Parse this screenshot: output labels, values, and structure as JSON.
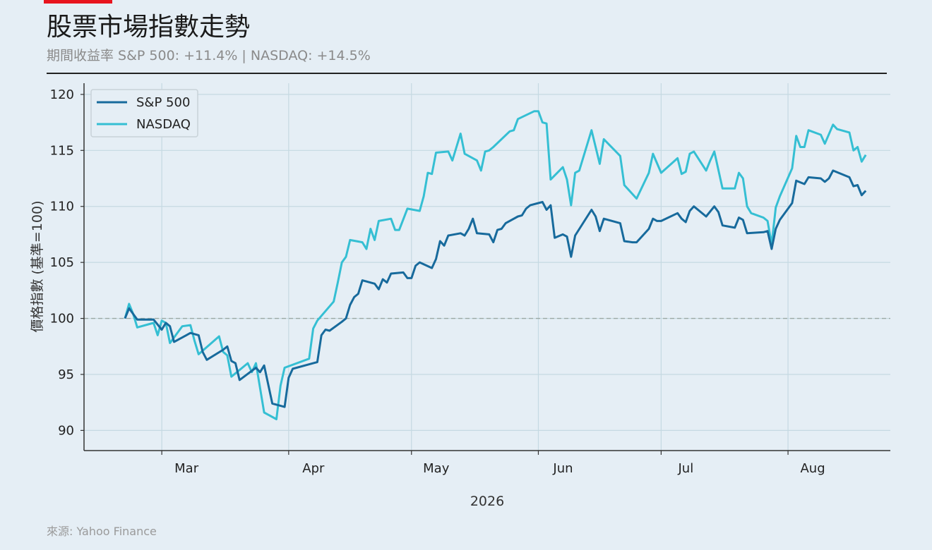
{
  "header": {
    "title": "股票市場指數走勢",
    "subtitle": "期間收益率 S&P 500: +11.4% | NASDAQ: +14.5%"
  },
  "footer": {
    "source": "來源: Yahoo Finance"
  },
  "colors": {
    "sp500": "#176a9c",
    "nasdaq": "#35bfd3",
    "accent": "#e8141e",
    "baseline": "#9aa8a4"
  },
  "chart_data": {
    "type": "line",
    "title": "",
    "xlabel": "2026",
    "ylabel": "價格指數 (基準=100)",
    "ylim": [
      88.2,
      121
    ],
    "yticks": [
      90,
      95,
      100,
      105,
      110,
      115,
      120
    ],
    "xlim": [
      "2026-02-10",
      "2026-08-26"
    ],
    "xticks": [
      {
        "date": "2026-03-01",
        "label": "Mar"
      },
      {
        "date": "2026-04-01",
        "label": "Apr"
      },
      {
        "date": "2026-05-01",
        "label": "May"
      },
      {
        "date": "2026-06-01",
        "label": "Jun"
      },
      {
        "date": "2026-07-01",
        "label": "Jul"
      },
      {
        "date": "2026-08-01",
        "label": "Aug"
      }
    ],
    "baseline": 100,
    "grid": true,
    "legend": "top-left",
    "series": [
      {
        "name": "S&P 500",
        "points": [
          [
            "2026-02-20",
            100.0
          ],
          [
            "2026-02-21",
            100.9
          ],
          [
            "2026-02-23",
            99.9
          ],
          [
            "2026-02-26",
            99.9
          ],
          [
            "2026-02-27",
            99.9
          ],
          [
            "2026-03-01",
            99.0
          ],
          [
            "2026-03-02",
            99.6
          ],
          [
            "2026-03-03",
            99.3
          ],
          [
            "2026-03-04",
            97.9
          ],
          [
            "2026-03-07",
            98.5
          ],
          [
            "2026-03-08",
            98.7
          ],
          [
            "2026-03-10",
            98.5
          ],
          [
            "2026-03-11",
            97.0
          ],
          [
            "2026-03-12",
            96.3
          ],
          [
            "2026-03-16",
            97.2
          ],
          [
            "2026-03-17",
            97.5
          ],
          [
            "2026-03-18",
            96.2
          ],
          [
            "2026-03-19",
            96.0
          ],
          [
            "2026-03-20",
            94.5
          ],
          [
            "2026-03-24",
            95.6
          ],
          [
            "2026-03-25",
            95.2
          ],
          [
            "2026-03-26",
            95.8
          ],
          [
            "2026-03-28",
            92.4
          ],
          [
            "2026-03-31",
            92.1
          ],
          [
            "2026-04-01",
            94.7
          ],
          [
            "2026-04-02",
            95.5
          ],
          [
            "2026-04-07",
            96.0
          ],
          [
            "2026-04-08",
            96.1
          ],
          [
            "2026-04-09",
            98.5
          ],
          [
            "2026-04-10",
            99.0
          ],
          [
            "2026-04-11",
            98.9
          ],
          [
            "2026-04-14",
            99.7
          ],
          [
            "2026-04-15",
            100.0
          ],
          [
            "2026-04-16",
            101.2
          ],
          [
            "2026-04-17",
            101.9
          ],
          [
            "2026-04-18",
            102.2
          ],
          [
            "2026-04-19",
            103.4
          ],
          [
            "2026-04-22",
            103.1
          ],
          [
            "2026-04-23",
            102.6
          ],
          [
            "2026-04-24",
            103.5
          ],
          [
            "2026-04-25",
            103.2
          ],
          [
            "2026-04-26",
            104.0
          ],
          [
            "2026-04-29",
            104.1
          ],
          [
            "2026-04-30",
            103.6
          ],
          [
            "2026-05-01",
            103.6
          ],
          [
            "2026-05-02",
            104.7
          ],
          [
            "2026-05-03",
            105.0
          ],
          [
            "2026-05-06",
            104.5
          ],
          [
            "2026-05-07",
            105.3
          ],
          [
            "2026-05-08",
            106.9
          ],
          [
            "2026-05-09",
            106.5
          ],
          [
            "2026-05-10",
            107.4
          ],
          [
            "2026-05-13",
            107.6
          ],
          [
            "2026-05-14",
            107.4
          ],
          [
            "2026-05-15",
            108.0
          ],
          [
            "2026-05-16",
            108.9
          ],
          [
            "2026-05-17",
            107.6
          ],
          [
            "2026-05-20",
            107.5
          ],
          [
            "2026-05-21",
            106.8
          ],
          [
            "2026-05-22",
            107.9
          ],
          [
            "2026-05-23",
            108.0
          ],
          [
            "2026-05-24",
            108.5
          ],
          [
            "2026-05-27",
            109.1
          ],
          [
            "2026-05-28",
            109.2
          ],
          [
            "2026-05-29",
            109.8
          ],
          [
            "2026-05-30",
            110.1
          ],
          [
            "2026-06-01",
            110.3
          ],
          [
            "2026-06-02",
            110.4
          ],
          [
            "2026-06-03",
            109.7
          ],
          [
            "2026-06-04",
            110.1
          ],
          [
            "2026-06-05",
            107.2
          ],
          [
            "2026-06-07",
            107.5
          ],
          [
            "2026-06-08",
            107.3
          ],
          [
            "2026-06-09",
            105.5
          ],
          [
            "2026-06-10",
            107.4
          ],
          [
            "2026-06-14",
            109.7
          ],
          [
            "2026-06-15",
            109.1
          ],
          [
            "2026-06-16",
            107.8
          ],
          [
            "2026-06-17",
            108.9
          ],
          [
            "2026-06-21",
            108.5
          ],
          [
            "2026-06-22",
            106.9
          ],
          [
            "2026-06-24",
            106.8
          ],
          [
            "2026-06-25",
            106.8
          ],
          [
            "2026-06-28",
            108.0
          ],
          [
            "2026-06-29",
            108.9
          ],
          [
            "2026-06-30",
            108.7
          ],
          [
            "2026-07-01",
            108.7
          ],
          [
            "2026-07-05",
            109.4
          ],
          [
            "2026-07-06",
            108.9
          ],
          [
            "2026-07-07",
            108.6
          ],
          [
            "2026-07-08",
            109.6
          ],
          [
            "2026-07-09",
            110.0
          ],
          [
            "2026-07-12",
            109.1
          ],
          [
            "2026-07-14",
            110.0
          ],
          [
            "2026-07-15",
            109.5
          ],
          [
            "2026-07-16",
            108.3
          ],
          [
            "2026-07-19",
            108.1
          ],
          [
            "2026-07-20",
            109.0
          ],
          [
            "2026-07-21",
            108.8
          ],
          [
            "2026-07-22",
            107.6
          ],
          [
            "2026-07-26",
            107.7
          ],
          [
            "2026-07-27",
            107.8
          ],
          [
            "2026-07-28",
            106.2
          ],
          [
            "2026-07-29",
            108.0
          ],
          [
            "2026-07-30",
            108.8
          ],
          [
            "2026-08-02",
            110.3
          ],
          [
            "2026-08-03",
            112.3
          ],
          [
            "2026-08-05",
            112.0
          ],
          [
            "2026-08-06",
            112.6
          ],
          [
            "2026-08-09",
            112.5
          ],
          [
            "2026-08-10",
            112.2
          ],
          [
            "2026-08-11",
            112.5
          ],
          [
            "2026-08-12",
            113.2
          ],
          [
            "2026-08-16",
            112.6
          ],
          [
            "2026-08-17",
            111.8
          ],
          [
            "2026-08-18",
            111.9
          ],
          [
            "2026-08-19",
            111.0
          ],
          [
            "2026-08-20",
            111.4
          ]
        ]
      },
      {
        "name": "NASDAQ",
        "points": [
          [
            "2026-02-20",
            100.0
          ],
          [
            "2026-02-21",
            101.3
          ],
          [
            "2026-02-22",
            100.4
          ],
          [
            "2026-02-23",
            99.2
          ],
          [
            "2026-02-26",
            99.5
          ],
          [
            "2026-02-27",
            99.6
          ],
          [
            "2026-02-28",
            98.5
          ],
          [
            "2026-03-01",
            99.8
          ],
          [
            "2026-03-02",
            99.6
          ],
          [
            "2026-03-03",
            97.8
          ],
          [
            "2026-03-06",
            99.3
          ],
          [
            "2026-03-08",
            99.4
          ],
          [
            "2026-03-09",
            98.0
          ],
          [
            "2026-03-10",
            96.8
          ],
          [
            "2026-03-15",
            98.4
          ],
          [
            "2026-03-16",
            97.0
          ],
          [
            "2026-03-17",
            96.7
          ],
          [
            "2026-03-18",
            94.8
          ],
          [
            "2026-03-22",
            96.0
          ],
          [
            "2026-03-23",
            95.2
          ],
          [
            "2026-03-24",
            96.0
          ],
          [
            "2026-03-26",
            91.6
          ],
          [
            "2026-03-29",
            91.0
          ],
          [
            "2026-03-30",
            94.0
          ],
          [
            "2026-03-31",
            95.6
          ],
          [
            "2026-04-06",
            96.4
          ],
          [
            "2026-04-07",
            99.1
          ],
          [
            "2026-04-08",
            99.8
          ],
          [
            "2026-04-12",
            101.5
          ],
          [
            "2026-04-13",
            103.2
          ],
          [
            "2026-04-14",
            105.0
          ],
          [
            "2026-04-15",
            105.5
          ],
          [
            "2026-04-16",
            107.0
          ],
          [
            "2026-04-19",
            106.8
          ],
          [
            "2026-04-20",
            106.2
          ],
          [
            "2026-04-21",
            108.0
          ],
          [
            "2026-04-22",
            107.0
          ],
          [
            "2026-04-23",
            108.7
          ],
          [
            "2026-04-26",
            108.9
          ],
          [
            "2026-04-27",
            107.9
          ],
          [
            "2026-04-28",
            107.9
          ],
          [
            "2026-04-30",
            109.8
          ],
          [
            "2026-05-03",
            109.6
          ],
          [
            "2026-05-04",
            110.9
          ],
          [
            "2026-05-05",
            113.0
          ],
          [
            "2026-05-06",
            112.9
          ],
          [
            "2026-05-07",
            114.8
          ],
          [
            "2026-05-10",
            114.9
          ],
          [
            "2026-05-11",
            114.1
          ],
          [
            "2026-05-12",
            115.3
          ],
          [
            "2026-05-13",
            116.5
          ],
          [
            "2026-05-14",
            114.7
          ],
          [
            "2026-05-17",
            114.1
          ],
          [
            "2026-05-18",
            113.2
          ],
          [
            "2026-05-19",
            114.9
          ],
          [
            "2026-05-20",
            115.0
          ],
          [
            "2026-05-21",
            115.3
          ],
          [
            "2026-05-25",
            116.7
          ],
          [
            "2026-05-26",
            116.8
          ],
          [
            "2026-05-27",
            117.8
          ],
          [
            "2026-05-31",
            118.5
          ],
          [
            "2026-06-01",
            118.5
          ],
          [
            "2026-06-02",
            117.5
          ],
          [
            "2026-06-03",
            117.4
          ],
          [
            "2026-06-04",
            112.4
          ],
          [
            "2026-06-07",
            113.5
          ],
          [
            "2026-06-08",
            112.4
          ],
          [
            "2026-06-09",
            110.1
          ],
          [
            "2026-06-10",
            113.0
          ],
          [
            "2026-06-11",
            113.2
          ],
          [
            "2026-06-14",
            116.8
          ],
          [
            "2026-06-16",
            113.8
          ],
          [
            "2026-06-17",
            116.0
          ],
          [
            "2026-06-21",
            114.5
          ],
          [
            "2026-06-22",
            111.9
          ],
          [
            "2026-06-25",
            110.7
          ],
          [
            "2026-06-28",
            113.0
          ],
          [
            "2026-06-29",
            114.7
          ],
          [
            "2026-07-01",
            113.0
          ],
          [
            "2026-07-05",
            114.3
          ],
          [
            "2026-07-06",
            112.9
          ],
          [
            "2026-07-07",
            113.1
          ],
          [
            "2026-07-08",
            114.7
          ],
          [
            "2026-07-09",
            114.9
          ],
          [
            "2026-07-12",
            113.2
          ],
          [
            "2026-07-13",
            114.1
          ],
          [
            "2026-07-14",
            114.9
          ],
          [
            "2026-07-16",
            111.6
          ],
          [
            "2026-07-19",
            111.6
          ],
          [
            "2026-07-20",
            113.0
          ],
          [
            "2026-07-21",
            112.5
          ],
          [
            "2026-07-22",
            110.0
          ],
          [
            "2026-07-23",
            109.4
          ],
          [
            "2026-07-26",
            109.0
          ],
          [
            "2026-07-27",
            108.7
          ],
          [
            "2026-07-28",
            106.6
          ],
          [
            "2026-07-29",
            109.9
          ],
          [
            "2026-07-30",
            110.9
          ],
          [
            "2026-08-02",
            113.4
          ],
          [
            "2026-08-03",
            116.3
          ],
          [
            "2026-08-04",
            115.3
          ],
          [
            "2026-08-05",
            115.3
          ],
          [
            "2026-08-06",
            116.8
          ],
          [
            "2026-08-09",
            116.4
          ],
          [
            "2026-08-10",
            115.6
          ],
          [
            "2026-08-12",
            117.3
          ],
          [
            "2026-08-13",
            116.9
          ],
          [
            "2026-08-16",
            116.6
          ],
          [
            "2026-08-17",
            115.0
          ],
          [
            "2026-08-18",
            115.3
          ],
          [
            "2026-08-19",
            114.0
          ],
          [
            "2026-08-20",
            114.6
          ]
        ]
      }
    ]
  }
}
